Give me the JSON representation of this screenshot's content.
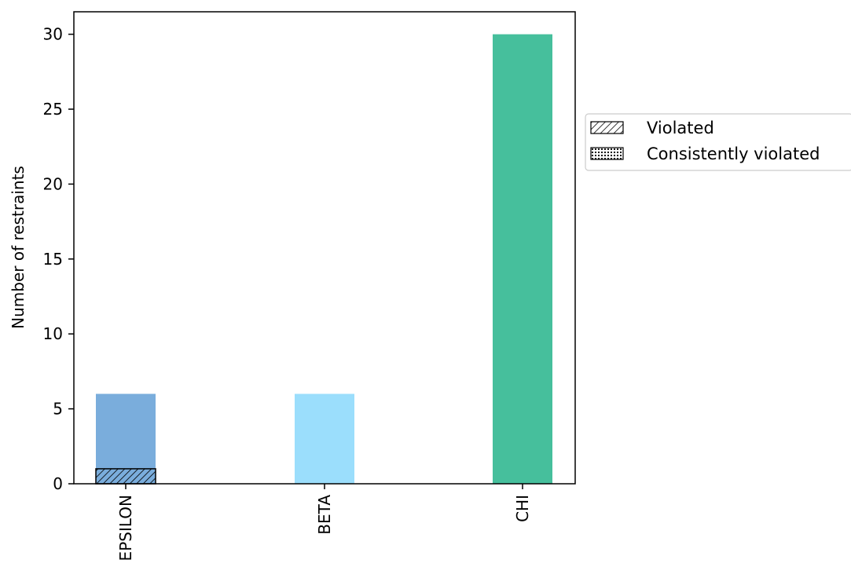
{
  "chart_data": {
    "type": "bar",
    "categories": [
      "EPSILON",
      "BETA",
      "CHI"
    ],
    "values": [
      6,
      6,
      30
    ],
    "bar_colors": [
      "#7aaddc",
      "#9bdefc",
      "#46bf9c"
    ],
    "overlays": [
      {
        "name": "Violated",
        "values": [
          1,
          0,
          0
        ],
        "pattern": "diagonal-hatch"
      },
      {
        "name": "Consistently violated",
        "values": [
          0,
          0,
          0
        ],
        "pattern": "dots"
      }
    ],
    "title": "",
    "xlabel": "",
    "ylabel": "Number of restraints",
    "ylim": [
      0,
      31.5
    ],
    "yticks": [
      0,
      5,
      10,
      15,
      20,
      25,
      30
    ],
    "grid": false,
    "legend": {
      "placement": "outside-right",
      "entries": [
        "Violated",
        "Consistently violated"
      ]
    }
  }
}
